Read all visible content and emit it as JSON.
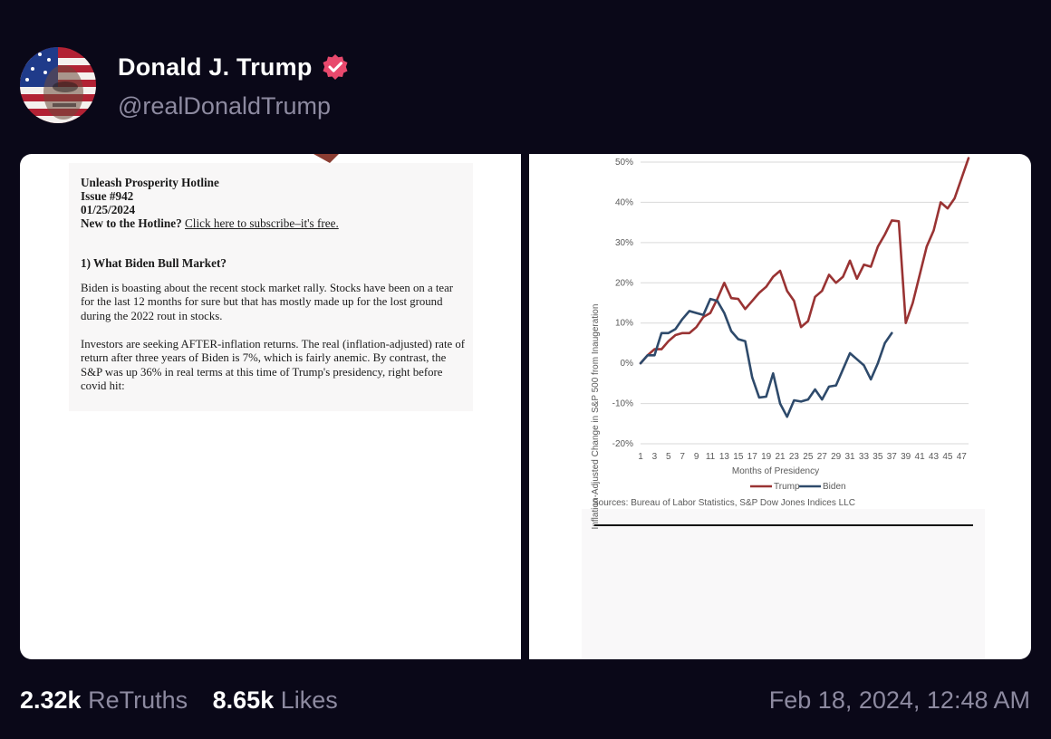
{
  "post": {
    "display_name": "Donald J. Trump",
    "handle": "@realDonaldTrump",
    "verified": true,
    "verified_icon": "verified-badge-icon",
    "avatar_icon": "flag-face-avatar-icon",
    "retruths_count": "2.32k",
    "retruths_label": "ReTruths",
    "likes_count": "8.65k",
    "likes_label": "Likes",
    "timestamp": "Feb 18, 2024, 12:48 AM"
  },
  "newsletter": {
    "title": "Unleash Prosperity Hotline",
    "issue": "Issue #942",
    "date": "01/25/2024",
    "new_prompt": "New to the Hotline?",
    "subscribe_link": "Click here to subscribe–it's free.",
    "section_heading": "1) What Biden Bull Market?",
    "paragraphs": [
      "Biden is boasting about the recent stock market rally. Stocks have been on a tear for the last 12 months for sure but that has mostly made up for the lost ground during the 2022 rout in stocks.",
      "Investors are seeking AFTER-inflation returns. The real (inflation-adjusted) rate of return after three years of Biden is 7%, which is fairly anemic. By contrast, the S&P was up 36% in real terms at this time of Trump's presidency, right before covid hit:"
    ]
  },
  "colors": {
    "background": "#0a0818",
    "trump_line": "#993333",
    "biden_line": "#2e4a6b",
    "verified": "#e8496d"
  },
  "chart_data": {
    "type": "line",
    "title": "",
    "xlabel": "Months of Presidency",
    "ylabel": "Inflation-Adjusted Change in S&P 500 from Inaugeration",
    "source": "Sources: Bureau of Labor Statistics, S&P Dow Jones Indices LLC",
    "ylim": [
      -20,
      50
    ],
    "xlim": [
      1,
      48
    ],
    "y_ticks": [
      "-20%",
      "-10%",
      "0%",
      "10%",
      "20%",
      "30%",
      "40%",
      "50%"
    ],
    "y_tick_values": [
      -20,
      -10,
      0,
      10,
      20,
      30,
      40,
      50
    ],
    "x_ticks": [
      "1",
      "3",
      "5",
      "7",
      "9",
      "11",
      "13",
      "15",
      "17",
      "19",
      "21",
      "23",
      "25",
      "27",
      "29",
      "31",
      "33",
      "35",
      "37",
      "39",
      "41",
      "43",
      "45",
      "47"
    ],
    "x_tick_values": [
      1,
      3,
      5,
      7,
      9,
      11,
      13,
      15,
      17,
      19,
      21,
      23,
      25,
      27,
      29,
      31,
      33,
      35,
      37,
      39,
      41,
      43,
      45,
      47
    ],
    "grid": true,
    "legend_position": "bottom",
    "series": [
      {
        "name": "Trump",
        "color": "#993333",
        "x": [
          1,
          2,
          3,
          4,
          5,
          6,
          7,
          8,
          9,
          10,
          11,
          12,
          13,
          14,
          15,
          16,
          17,
          18,
          19,
          20,
          21,
          22,
          23,
          24,
          25,
          26,
          27,
          28,
          29,
          30,
          31,
          32,
          33,
          34,
          35,
          36,
          37,
          38,
          39,
          40,
          41,
          42,
          43,
          44,
          45,
          46,
          47,
          48
        ],
        "values": [
          0,
          2,
          3.5,
          3.5,
          5.5,
          7,
          7.5,
          7.5,
          9,
          11.5,
          12.5,
          16,
          20,
          16.2,
          16,
          13.5,
          15.5,
          17.5,
          19,
          21.5,
          23,
          18,
          15.5,
          9,
          10.5,
          16.5,
          18,
          22,
          20,
          21.5,
          25.5,
          21,
          24.5,
          24,
          29,
          32,
          35.5,
          35.3,
          10,
          15,
          22,
          29,
          33,
          40,
          38.5,
          41,
          46,
          51
        ]
      },
      {
        "name": "Biden",
        "color": "#2e4a6b",
        "x": [
          1,
          2,
          3,
          4,
          5,
          6,
          7,
          8,
          9,
          10,
          11,
          12,
          13,
          14,
          15,
          16,
          17,
          18,
          19,
          20,
          21,
          22,
          23,
          24,
          25,
          26,
          27,
          28,
          29,
          30,
          31,
          32,
          33,
          34,
          35,
          36,
          37
        ],
        "values": [
          0,
          2,
          2,
          7.5,
          7.5,
          8.5,
          11,
          13,
          12.5,
          12,
          16,
          15.5,
          12.5,
          8,
          6,
          5.5,
          -3.5,
          -8.5,
          -8.3,
          -2.5,
          -10,
          -13.3,
          -9.2,
          -9.5,
          -9,
          -6.5,
          -9,
          -5.8,
          -5.5,
          -1.5,
          2.5,
          1,
          -0.5,
          -4,
          0,
          5,
          7.5
        ]
      }
    ]
  }
}
